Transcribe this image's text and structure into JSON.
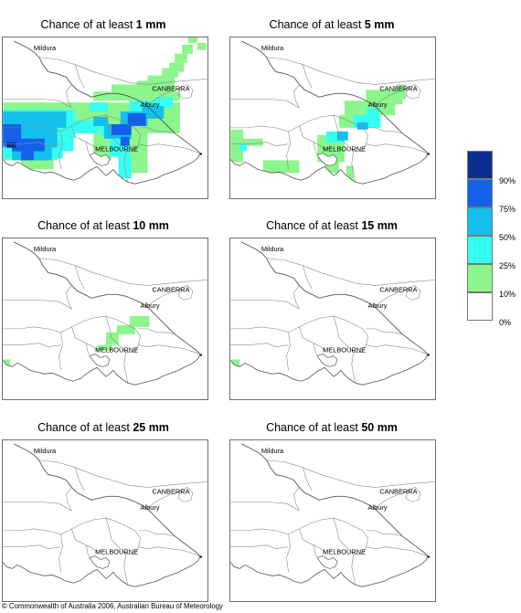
{
  "panels": [
    {
      "prefix": "Chance of at least",
      "amount": "1 mm"
    },
    {
      "prefix": "Chance of at least",
      "amount": "5 mm"
    },
    {
      "prefix": "Chance of at least",
      "amount": "10 mm"
    },
    {
      "prefix": "Chance of at least",
      "amount": "15 mm"
    },
    {
      "prefix": "Chance of at least",
      "amount": "25 mm"
    },
    {
      "prefix": "Chance of at least",
      "amount": "50 mm"
    }
  ],
  "cities": {
    "mildura": "Mildura",
    "canberra": "CANBERRA",
    "albury": "Albury",
    "melbourne": "MELBOURNE"
  },
  "legend": {
    "labels": [
      "90%",
      "75%",
      "50%",
      "25%",
      "10%",
      "0%"
    ],
    "colors": [
      "#0a2f8f",
      "#1460e8",
      "#13c0ec",
      "#34fff0",
      "#8cf58c",
      "#ffffff"
    ]
  },
  "copyright": "© Commonwealth of Australia 2006, Australian Bureau of Meteorology"
}
